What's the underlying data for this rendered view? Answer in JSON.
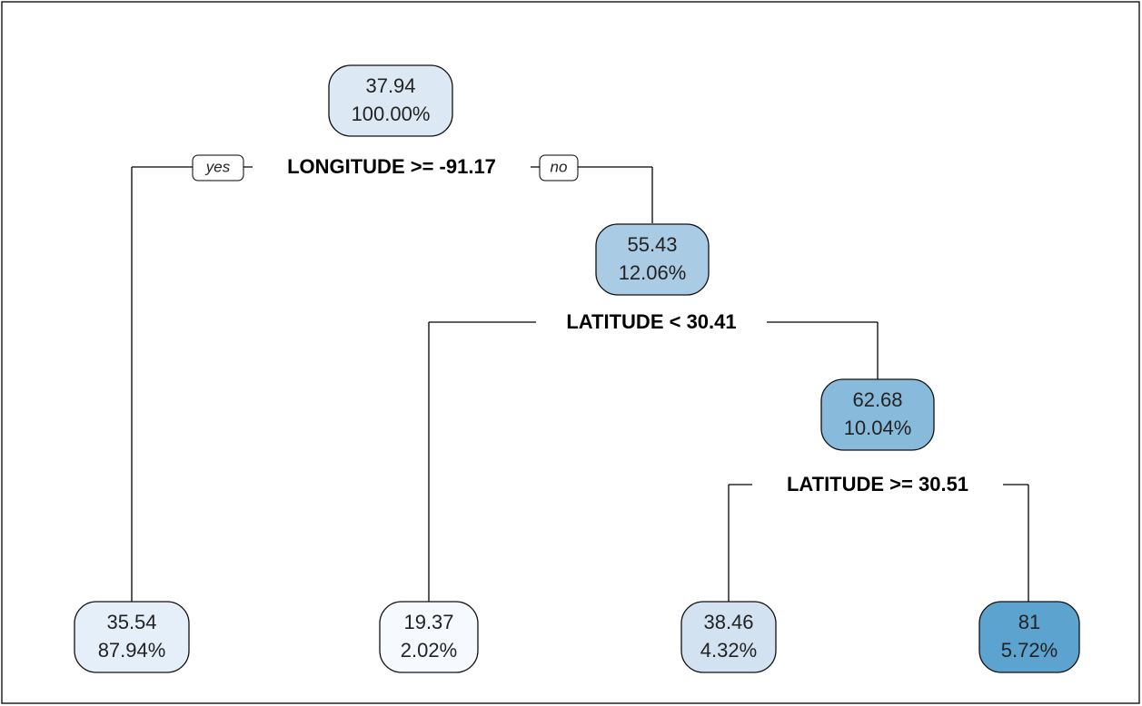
{
  "nodes": [
    {
      "value": "37.94",
      "percent": "100.00%",
      "color": "#dce9f5"
    },
    {
      "value": "35.54",
      "percent": "87.94%",
      "color": "#e5eff9"
    },
    {
      "value": "55.43",
      "percent": "12.06%",
      "color": "#a9cbe4"
    },
    {
      "value": "19.37",
      "percent": "2.02%",
      "color": "#f6f9fd"
    },
    {
      "value": "62.68",
      "percent": "10.04%",
      "color": "#88bbdb"
    },
    {
      "value": "38.46",
      "percent": "4.32%",
      "color": "#d2e2f1"
    },
    {
      "value": "81",
      "percent": "5.72%",
      "color": "#5ca3cf",
      "text_color": "#ffffff"
    }
  ],
  "splits": [
    {
      "label": "LONGITUDE >= -91.17"
    },
    {
      "label": "LATITUDE < 30.41"
    },
    {
      "label": "LATITUDE >= 30.51"
    }
  ],
  "branch_labels": [
    "yes",
    "no"
  ]
}
